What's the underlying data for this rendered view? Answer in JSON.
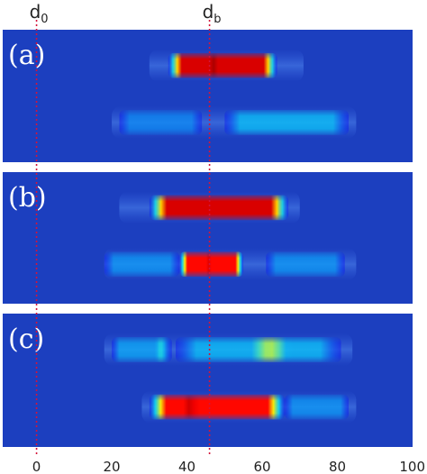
{
  "chart_data": {
    "type": "heatmap",
    "title": "",
    "xlabel": "",
    "ylabel": "",
    "xlim": [
      -9,
      100
    ],
    "x_ticks": [
      "0",
      "20",
      "40",
      "60",
      "80",
      "100"
    ],
    "x_tick_values": [
      0,
      20,
      40,
      60,
      80,
      100
    ],
    "colormap": "jet",
    "background_color": "#1c3fbf",
    "markers": [
      {
        "label": "d",
        "subscript": "0",
        "x": 0,
        "color": "#d4143a",
        "style": "dotted"
      },
      {
        "label": "d",
        "subscript": "b",
        "x": 46,
        "color": "#d4143a",
        "style": "dotted"
      }
    ],
    "panels": [
      {
        "label": "(a)",
        "bands": [
          {
            "row": "upper",
            "x_start": 30,
            "x_end": 71,
            "segments": [
              {
                "x_start": 35,
                "x_end": 64,
                "peak": 0.9,
                "lobes": [
                  [
                    47,
                    0.95
                  ]
                ]
              }
            ]
          },
          {
            "row": "lower",
            "x_start": 20,
            "x_end": 85,
            "segments": [
              {
                "x_start": 22,
                "x_end": 44,
                "peak": 0.18,
                "lobes": []
              },
              {
                "x_start": 50,
                "x_end": 83,
                "peak": 0.25,
                "lobes": []
              }
            ]
          }
        ]
      },
      {
        "label": "(b)",
        "bands": [
          {
            "row": "upper",
            "x_start": 22,
            "x_end": 70,
            "segments": [
              {
                "x_start": 30,
                "x_end": 67,
                "peak": 0.9,
                "lobes": [
                  [
                    38,
                    0.9
                  ],
                  [
                    54,
                    0.9
                  ]
                ]
              }
            ]
          },
          {
            "row": "lower",
            "x_start": 18,
            "x_end": 85,
            "segments": [
              {
                "x_start": 18,
                "x_end": 38,
                "peak": 0.2,
                "lobes": []
              },
              {
                "x_start": 38,
                "x_end": 55,
                "peak": 0.85,
                "lobes": [
                  [
                    46,
                    0.9
                  ]
                ]
              },
              {
                "x_start": 61,
                "x_end": 82,
                "peak": 0.2,
                "lobes": []
              }
            ]
          }
        ]
      },
      {
        "label": "(c)",
        "bands": [
          {
            "row": "upper",
            "x_start": 18,
            "x_end": 84,
            "segments": [
              {
                "x_start": 20,
                "x_end": 36,
                "peak": 0.22,
                "lobes": [
                  [
                    33,
                    0.32
                  ]
                ]
              },
              {
                "x_start": 37,
                "x_end": 81,
                "peak": 0.25,
                "lobes": [
                  [
                    62,
                    0.5
                  ]
                ]
              }
            ]
          },
          {
            "row": "lower",
            "x_start": 28,
            "x_end": 85,
            "segments": [
              {
                "x_start": 30,
                "x_end": 66,
                "peak": 0.85,
                "lobes": [
                  [
                    41,
                    0.92
                  ]
                ]
              },
              {
                "x_start": 66,
                "x_end": 83,
                "peak": 0.2,
                "lobes": []
              }
            ]
          }
        ]
      }
    ]
  }
}
